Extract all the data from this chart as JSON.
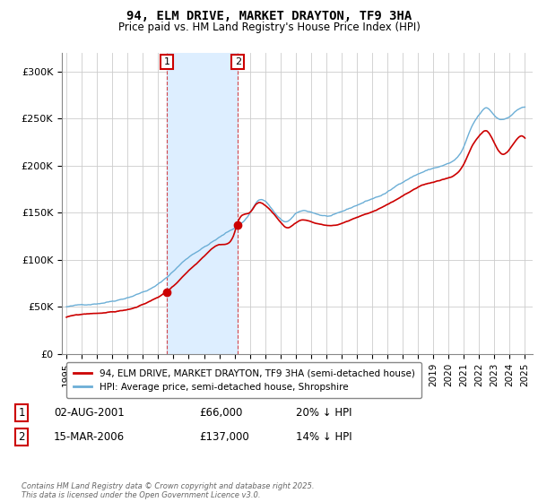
{
  "title": "94, ELM DRIVE, MARKET DRAYTON, TF9 3HA",
  "subtitle": "Price paid vs. HM Land Registry's House Price Index (HPI)",
  "legend_line1": "94, ELM DRIVE, MARKET DRAYTON, TF9 3HA (semi-detached house)",
  "legend_line2": "HPI: Average price, semi-detached house, Shropshire",
  "footer": "Contains HM Land Registry data © Crown copyright and database right 2025.\nThis data is licensed under the Open Government Licence v3.0.",
  "transaction1_date": "02-AUG-2001",
  "transaction1_price": "£66,000",
  "transaction1_hpi": "20% ↓ HPI",
  "transaction2_date": "15-MAR-2006",
  "transaction2_price": "£137,000",
  "transaction2_hpi": "14% ↓ HPI",
  "hpi_line_color": "#6baed6",
  "price_line_color": "#cc0000",
  "shading_color": "#ddeeff",
  "vline_color": "#cc0000",
  "annotation_box_color": "#cc0000",
  "ylim_min": 0,
  "ylim_max": 320000,
  "yticks": [
    0,
    50000,
    100000,
    150000,
    200000,
    250000,
    300000
  ],
  "ytick_labels": [
    "£0",
    "£50K",
    "£100K",
    "£150K",
    "£200K",
    "£250K",
    "£300K"
  ],
  "transaction1_x": 2001.58,
  "transaction1_y": 66000,
  "transaction2_x": 2006.21,
  "transaction2_y": 137000,
  "xlim_min": 1994.7,
  "xlim_max": 2025.5
}
